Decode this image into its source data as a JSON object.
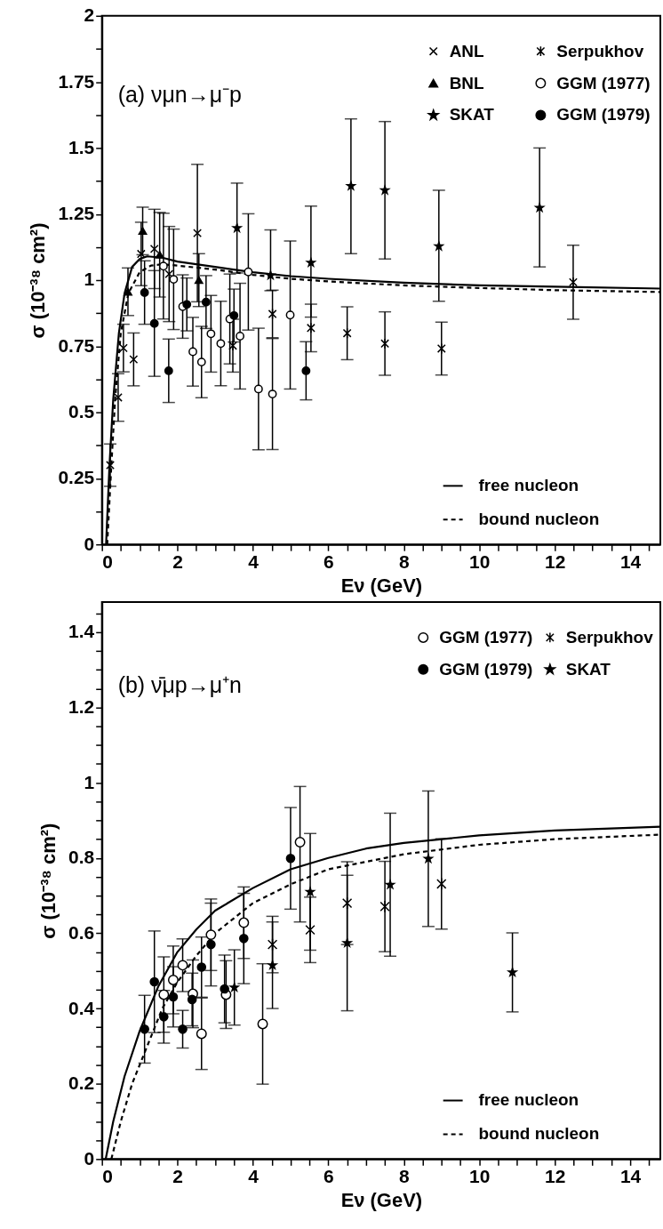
{
  "chart_data": [
    {
      "type": "scatter",
      "xlabel": "Eν (GeV)",
      "ylabel": "σ (10⁻³⁸ cm²)",
      "annotations": [
        "(a) νμn→μ⁻p"
      ],
      "xlim": [
        0,
        14.8
      ],
      "ylim": [
        0,
        2
      ],
      "legend": "right",
      "grid": false,
      "xticks": [
        0,
        {
          "value": 0.5,
          "label": null
        },
        {
          "value": 1,
          "label": null
        },
        {
          "value": 1.5,
          "label": null
        },
        2,
        {
          "value": 2.5,
          "label": null
        },
        {
          "value": 3,
          "label": null
        },
        {
          "value": 3.5,
          "label": null
        },
        4,
        {
          "value": 4.5,
          "label": null
        },
        {
          "value": 5,
          "label": null
        },
        {
          "value": 5.5,
          "label": null
        },
        6,
        {
          "value": 6.5,
          "label": null
        },
        {
          "value": 7,
          "label": null
        },
        {
          "value": 7.5,
          "label": null
        },
        8,
        {
          "value": 8.5,
          "label": null
        },
        {
          "value": 9,
          "label": null
        },
        {
          "value": 9.5,
          "label": null
        },
        10,
        {
          "value": 10.5,
          "label": null
        },
        {
          "value": 11,
          "label": null
        },
        {
          "value": 11.5,
          "label": null
        },
        12,
        {
          "value": 12.5,
          "label": null
        },
        {
          "value": 13,
          "label": null
        },
        {
          "value": 13.5,
          "label": null
        },
        14,
        {
          "value": 14.5,
          "label": null
        }
      ],
      "yticks": [
        0,
        {
          "value": 0.125,
          "label": null
        },
        0.25,
        {
          "value": 0.375,
          "label": null
        },
        0.5,
        {
          "value": 0.625,
          "label": null
        },
        0.75,
        {
          "value": 0.875,
          "label": null
        },
        1,
        {
          "value": 1.125,
          "label": null
        },
        1.25,
        {
          "value": 1.375,
          "label": null
        },
        1.5,
        {
          "value": 1.625,
          "label": null
        },
        1.75,
        {
          "value": 1.875,
          "label": null
        },
        2
      ],
      "series": [
        {
          "name": "ANL",
          "marker": "cross",
          "color": "#000000",
          "x": [
            0.22,
            0.43,
            0.57,
            0.84,
            1.04,
            1.39,
            1.78,
            2.53
          ],
          "values": [
            0.3,
            0.556,
            0.743,
            0.7,
            1.099,
            1.118,
            1.023,
            1.178
          ],
          "errors": [
            0.08,
            0.09,
            0.09,
            0.1,
            0.12,
            0.15,
            0.18,
            0.26
          ]
        },
        {
          "name": "Serpukhov",
          "color": "#000000",
          "x": [
            3.47,
            4.52,
            5.54,
            6.5,
            7.5,
            9.0,
            12.49
          ],
          "values": [
            0.752,
            0.872,
            0.819,
            0.799,
            0.76,
            0.741,
            0.992
          ],
          "errors": [
            0.1,
            0.09,
            0.09,
            0.1,
            0.12,
            0.1,
            0.14
          ]
        },
        {
          "name": "BNL",
          "marker": "triangle",
          "color": "#000000",
          "x": [
            0.69,
            1.08,
            1.53,
            2.57
          ],
          "values": [
            0.956,
            1.186,
            1.096,
            1.0
          ],
          "errors": [
            0.09,
            0.09,
            0.16,
            0.1
          ]
        },
        {
          "name": "GGM (1977)",
          "marker": "circle",
          "color": "#ffffff",
          "x": [
            1.63,
            1.9,
            2.14,
            2.41,
            2.64,
            2.89,
            3.15,
            3.39,
            3.66,
            3.88,
            4.15,
            4.52,
            4.99
          ],
          "values": [
            1.053,
            1.003,
            0.9,
            0.729,
            0.69,
            0.797,
            0.76,
            0.853,
            0.788,
            1.031,
            0.588,
            0.569,
            0.868
          ],
          "errors": [
            0.2,
            0.19,
            0.12,
            0.13,
            0.135,
            0.145,
            0.16,
            0.17,
            0.2,
            0.22,
            0.23,
            0.21,
            0.28
          ]
        },
        {
          "name": "SKAT",
          "marker": "star",
          "color": "#000000",
          "x": [
            3.58,
            4.47,
            5.54,
            6.6,
            7.5,
            8.93,
            11.6
          ],
          "values": [
            1.197,
            1.018,
            1.066,
            1.356,
            1.34,
            1.128,
            1.274
          ],
          "errors": [
            0.17,
            [
              0.96,
              1.19
            ],
            [
              0.86,
              1.28
            ],
            [
              1.1,
              1.61
            ],
            [
              1.08,
              1.6
            ],
            [
              0.92,
              1.34
            ],
            [
              1.05,
              1.5
            ]
          ]
        },
        {
          "name": "GGM (1979)",
          "marker": "circle",
          "color": "#000000",
          "x": [
            1.13,
            1.39,
            1.77,
            2.25,
            2.76,
            3.5,
            5.41
          ],
          "values": [
            0.953,
            0.836,
            0.657,
            0.908,
            0.917,
            0.866,
            0.657
          ],
          "errors": [
            0.12,
            0.2,
            0.12,
            0.1,
            0.1,
            0.1,
            0.11
          ]
        },
        {
          "name": "free nucleon",
          "type": "line",
          "line_style": "solid",
          "color": "#000000",
          "x": [
            0.11,
            0.2,
            0.3,
            0.45,
            0.6,
            0.8,
            1.0,
            1.2,
            1.6,
            2,
            3,
            4,
            5,
            6,
            8,
            10,
            12,
            14.8
          ],
          "values": [
            0,
            0.3,
            0.55,
            0.8,
            0.95,
            1.05,
            1.08,
            1.09,
            1.085,
            1.07,
            1.05,
            1.03,
            1.015,
            1.005,
            0.99,
            0.98,
            0.975,
            0.968
          ]
        },
        {
          "name": "bound nucleon",
          "type": "line",
          "line_style": "dashed",
          "color": "#000000",
          "x": [
            0.14,
            0.25,
            0.35,
            0.5,
            0.7,
            1.0,
            1.3,
            1.6,
            2,
            3,
            4,
            5,
            6,
            8,
            10,
            12,
            14.8
          ],
          "values": [
            0,
            0.3,
            0.55,
            0.8,
            0.95,
            1.03,
            1.055,
            1.06,
            1.055,
            1.04,
            1.02,
            1.005,
            0.995,
            0.98,
            0.97,
            0.962,
            0.955
          ]
        }
      ]
    },
    {
      "type": "scatter",
      "xlabel": "Eν (GeV)",
      "ylabel": "σ (10⁻³⁸ cm²)",
      "annotations": [
        "(b) ν̄μp→μ⁺n"
      ],
      "xlim": [
        0,
        14.8
      ],
      "ylim": [
        0,
        1.48
      ],
      "legend": "right",
      "grid": false,
      "xticks": [
        0,
        {
          "value": 0.5,
          "label": null
        },
        {
          "value": 1,
          "label": null
        },
        {
          "value": 1.5,
          "label": null
        },
        2,
        {
          "value": 2.5,
          "label": null
        },
        {
          "value": 3,
          "label": null
        },
        {
          "value": 3.5,
          "label": null
        },
        4,
        {
          "value": 4.5,
          "label": null
        },
        {
          "value": 5,
          "label": null
        },
        {
          "value": 5.5,
          "label": null
        },
        6,
        {
          "value": 6.5,
          "label": null
        },
        {
          "value": 7,
          "label": null
        },
        {
          "value": 7.5,
          "label": null
        },
        8,
        {
          "value": 8.5,
          "label": null
        },
        {
          "value": 9,
          "label": null
        },
        {
          "value": 9.5,
          "label": null
        },
        10,
        {
          "value": 10.5,
          "label": null
        },
        {
          "value": 11,
          "label": null
        },
        {
          "value": 11.5,
          "label": null
        },
        12,
        {
          "value": 12.5,
          "label": null
        },
        {
          "value": 13,
          "label": null
        },
        {
          "value": 13.5,
          "label": null
        },
        14,
        {
          "value": 14.5,
          "label": null
        }
      ],
      "yticks": [
        0,
        {
          "value": 0.05,
          "label": null
        },
        {
          "value": 0.1,
          "label": null
        },
        {
          "value": 0.15,
          "label": null
        },
        0.2,
        {
          "value": 0.25,
          "label": null
        },
        {
          "value": 0.3,
          "label": null
        },
        {
          "value": 0.35,
          "label": null
        },
        0.4,
        {
          "value": 0.45,
          "label": null
        },
        {
          "value": 0.5,
          "label": null
        },
        {
          "value": 0.55,
          "label": null
        },
        0.6,
        {
          "value": 0.65,
          "label": null
        },
        {
          "value": 0.7,
          "label": null
        },
        {
          "value": 0.75,
          "label": null
        },
        0.8,
        {
          "value": 0.85,
          "label": null
        },
        {
          "value": 0.9,
          "label": null
        },
        {
          "value": 0.95,
          "label": null
        },
        1,
        {
          "value": 1.05,
          "label": null
        },
        {
          "value": 1.1,
          "label": null
        },
        {
          "value": 1.15,
          "label": null
        },
        1.2,
        {
          "value": 1.25,
          "label": null
        },
        {
          "value": 1.3,
          "label": null
        },
        {
          "value": 1.35,
          "label": null
        },
        1.4,
        {
          "value": 1.45,
          "label": null
        }
      ],
      "series": [
        {
          "name": "GGM (1977)",
          "marker": "circle",
          "color": "#ffffff",
          "x": [
            1.64,
            1.89,
            2.14,
            2.41,
            2.64,
            2.89,
            3.29,
            3.76,
            4.26,
            5.25
          ],
          "values": [
            0.437,
            0.476,
            0.515,
            0.439,
            0.333,
            0.596,
            0.437,
            0.628,
            0.359,
            0.842
          ],
          "errors": [
            0.1,
            0.09,
            0.07,
            0.09,
            0.095,
            0.095,
            0.09,
            0.095,
            0.16,
            [
              0.63,
              0.99
            ]
          ]
        },
        {
          "name": "Serpukhov",
          "color": "#000000",
          "x": [
            4.52,
            5.52,
            6.5,
            7.5,
            9.0
          ],
          "values": [
            0.57,
            0.609,
            0.68,
            0.671,
            0.731
          ],
          "errors": [
            0.075,
            0.087,
            0.11,
            0.12,
            0.12
          ]
        },
        {
          "name": "GGM (1979)",
          "marker": "circle",
          "color": "#000000",
          "x": [
            1.13,
            1.39,
            1.64,
            1.89,
            2.14,
            2.39,
            2.64,
            2.89,
            3.25,
            3.76,
            5.0
          ],
          "values": [
            0.345,
            0.471,
            0.378,
            0.431,
            0.345,
            0.424,
            0.51,
            0.57,
            0.452,
            0.586,
            0.799
          ],
          "errors": [
            0.09,
            0.135,
            0.07,
            0.08,
            0.05,
            0.07,
            0.08,
            0.11,
            0.09,
            0.12,
            0.135
          ]
        },
        {
          "name": "SKAT",
          "marker": "star",
          "color": "#000000",
          "x": [
            3.51,
            4.52,
            5.52,
            6.5,
            7.64,
            8.65,
            10.88
          ],
          "values": [
            0.456,
            0.515,
            0.71,
            0.574,
            0.729,
            0.798,
            0.496
          ],
          "errors": [
            0.1,
            0.115,
            0.155,
            0.18,
            0.19,
            0.18,
            0.105
          ]
        },
        {
          "name": "free nucleon",
          "type": "line",
          "line_style": "solid",
          "color": "#000000",
          "x": [
            0.1,
            0.3,
            0.6,
            1,
            1.5,
            2,
            2.5,
            3,
            4,
            5,
            6,
            7,
            8,
            10,
            12,
            14.8
          ],
          "values": [
            0,
            0.1,
            0.22,
            0.34,
            0.46,
            0.55,
            0.61,
            0.66,
            0.72,
            0.77,
            0.8,
            0.825,
            0.84,
            0.86,
            0.873,
            0.883
          ]
        },
        {
          "name": "bound nucleon",
          "type": "line",
          "line_style": "dashed",
          "color": "#000000",
          "x": [
            0.25,
            0.5,
            0.8,
            1.2,
            1.6,
            2,
            2.5,
            3,
            4,
            5,
            6,
            7,
            8,
            10,
            12,
            14.8
          ],
          "values": [
            0,
            0.1,
            0.2,
            0.3,
            0.4,
            0.47,
            0.54,
            0.6,
            0.68,
            0.73,
            0.77,
            0.79,
            0.81,
            0.835,
            0.85,
            0.862
          ]
        }
      ]
    }
  ]
}
